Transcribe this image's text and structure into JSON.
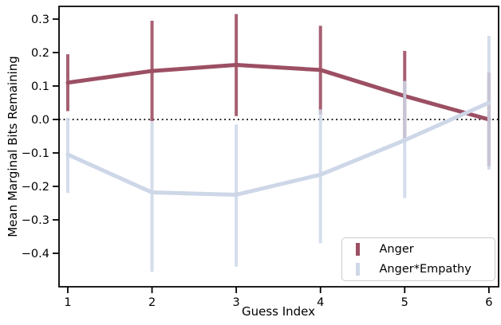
{
  "chart_data": {
    "type": "line",
    "title": "",
    "xlabel": "Guess Index",
    "ylabel": "Mean Marginal Bits Remaining",
    "x": [
      1,
      2,
      3,
      4,
      5,
      6
    ],
    "xticks": [
      1,
      2,
      3,
      4,
      5,
      6
    ],
    "yticks": [
      0.3,
      0.2,
      0.1,
      0.0,
      -0.1,
      -0.2,
      -0.3,
      -0.4
    ],
    "xlim": [
      0.896,
      6.115
    ],
    "ylim": [
      -0.5,
      0.338
    ],
    "grid": false,
    "zero_line": {
      "value": 0.0,
      "style": "dotted",
      "color": "#000000"
    },
    "legend_position": "lower right",
    "series": [
      {
        "name": "Anger",
        "color": "#9c4f63",
        "bar_color": "rgba(156,79,99,0.9)",
        "values": [
          0.11,
          0.145,
          0.163,
          0.148,
          0.07,
          0.0
        ],
        "ci_low": [
          0.025,
          -0.005,
          0.01,
          0.015,
          -0.065,
          -0.14
        ],
        "ci_high": [
          0.195,
          0.295,
          0.315,
          0.28,
          0.205,
          0.14
        ]
      },
      {
        "name": "Anger*Empathy",
        "color": "#cdd7e8",
        "bar_color": "rgba(205,215,232,0.85)",
        "values": [
          -0.105,
          -0.218,
          -0.225,
          -0.165,
          -0.062,
          0.05
        ],
        "ci_low": [
          -0.22,
          -0.455,
          -0.44,
          -0.37,
          -0.235,
          -0.15
        ],
        "ci_high": [
          0.005,
          -0.005,
          -0.015,
          0.03,
          0.115,
          0.25
        ]
      }
    ]
  },
  "legend": {
    "items": [
      {
        "label": "Anger"
      },
      {
        "label": "Anger*Empathy"
      }
    ]
  },
  "colors": {
    "anger": "#9c4f63",
    "anger_empathy": "#cdd7e8",
    "axis": "#000000",
    "legend_border": "#cccccc",
    "background": "#ffffff"
  }
}
